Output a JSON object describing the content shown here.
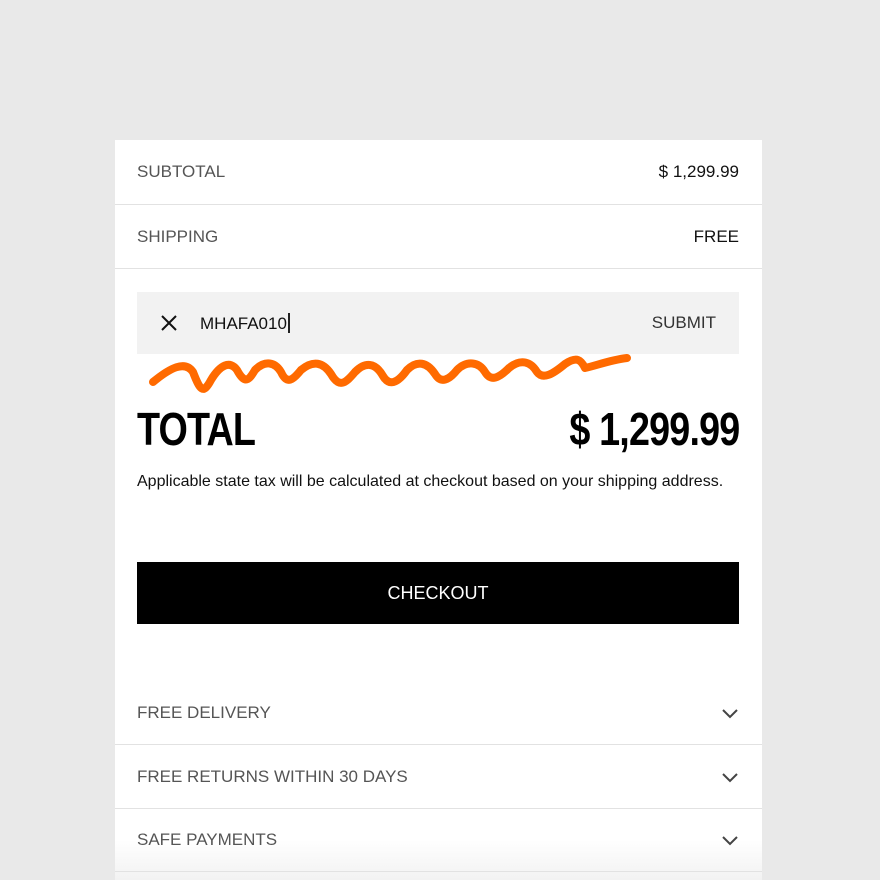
{
  "summary": {
    "subtotal_label": "SUBTOTAL",
    "subtotal_value": "$ 1,299.99",
    "shipping_label": "SHIPPING",
    "shipping_value": "FREE"
  },
  "promo": {
    "code": "MHAFA010",
    "submit_label": "SUBMIT"
  },
  "total": {
    "label": "TOTAL",
    "value": "$ 1,299.99"
  },
  "tax_note": "Applicable state tax will be calculated at checkout based on your shipping address.",
  "checkout_label": "CHECKOUT",
  "accordion": [
    {
      "label": "FREE DELIVERY"
    },
    {
      "label": "FREE RETURNS WITHIN 30 DAYS"
    },
    {
      "label": "SAFE PAYMENTS"
    }
  ],
  "colors": {
    "annotation": "#ff6a00",
    "button": "#000000"
  }
}
